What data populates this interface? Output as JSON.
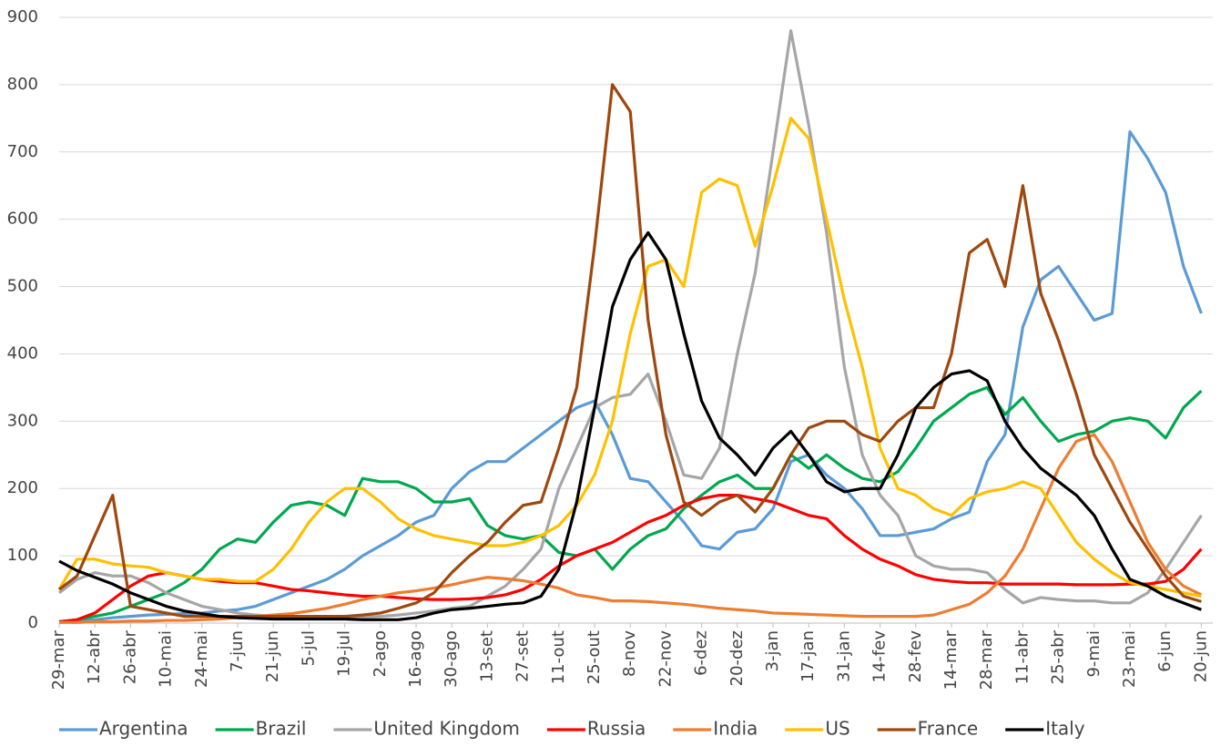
{
  "chart_data": {
    "type": "line",
    "categories": [
      "29-mar",
      null,
      "12-abr",
      null,
      "26-abr",
      null,
      "10-mai",
      null,
      "24-mai",
      null,
      "7-jun",
      null,
      "21-jun",
      null,
      "5-jul",
      null,
      "19-jul",
      null,
      "2-ago",
      null,
      "16-ago",
      null,
      "30-ago",
      null,
      "13-set",
      null,
      "27-set",
      null,
      "11-out",
      null,
      "25-out",
      null,
      "8-nov",
      null,
      "22-nov",
      null,
      "6-dez",
      null,
      "20-dez",
      null,
      "3-jan",
      null,
      "17-jan",
      null,
      "31-jan",
      null,
      "14-fev",
      null,
      "28-fev",
      null,
      "14-mar",
      null,
      "28-mar",
      null,
      "11-abr",
      null,
      "25-abr",
      null,
      "9-mai",
      null,
      "23-mai",
      null,
      "6-jun",
      null,
      "20-jun"
    ],
    "series": [
      {
        "name": "Argentina",
        "color": "#5b9bd5",
        "values": [
          2,
          3,
          5,
          8,
          10,
          12,
          13,
          14,
          15,
          18,
          20,
          25,
          35,
          45,
          55,
          65,
          80,
          100,
          115,
          130,
          150,
          160,
          200,
          225,
          240,
          240,
          260,
          280,
          300,
          320,
          330,
          280,
          215,
          210,
          180,
          150,
          115,
          110,
          135,
          140,
          170,
          240,
          250,
          220,
          200,
          170,
          130,
          130,
          135,
          140,
          155,
          165,
          240,
          280,
          440,
          510,
          530,
          490,
          450,
          460,
          730,
          690,
          640,
          530,
          460
        ]
      },
      {
        "name": "Brazil",
        "color": "#00a84f",
        "values": [
          2,
          5,
          10,
          15,
          25,
          35,
          45,
          60,
          80,
          110,
          125,
          120,
          150,
          175,
          180,
          175,
          160,
          215,
          210,
          210,
          200,
          180,
          180,
          185,
          145,
          130,
          125,
          130,
          105,
          100,
          110,
          80,
          110,
          130,
          140,
          170,
          190,
          210,
          220,
          200,
          200,
          250,
          230,
          250,
          230,
          215,
          210,
          225,
          260,
          300,
          320,
          340,
          350,
          310,
          335,
          300,
          270,
          280,
          285,
          300,
          305,
          300,
          275,
          320,
          345
        ]
      },
      {
        "name": "United Kingdom",
        "color": "#a6a6a6",
        "values": [
          45,
          65,
          75,
          70,
          70,
          60,
          45,
          35,
          25,
          20,
          15,
          12,
          10,
          8,
          8,
          8,
          8,
          9,
          10,
          12,
          15,
          18,
          22,
          25,
          40,
          55,
          80,
          110,
          200,
          260,
          320,
          335,
          340,
          370,
          300,
          220,
          215,
          260,
          400,
          520,
          700,
          880,
          740,
          580,
          380,
          250,
          190,
          160,
          100,
          85,
          80,
          80,
          75,
          50,
          30,
          38,
          35,
          33,
          33,
          30,
          30,
          45,
          80,
          120,
          160
        ]
      },
      {
        "name": "Russia",
        "color": "#ff0000",
        "values": [
          2,
          5,
          15,
          35,
          55,
          70,
          75,
          70,
          65,
          62,
          60,
          60,
          55,
          50,
          48,
          45,
          42,
          40,
          40,
          38,
          36,
          35,
          35,
          36,
          38,
          42,
          50,
          65,
          85,
          100,
          110,
          120,
          135,
          150,
          160,
          175,
          185,
          190,
          190,
          185,
          180,
          170,
          160,
          155,
          130,
          110,
          95,
          85,
          72,
          65,
          62,
          60,
          60,
          58,
          58,
          58,
          58,
          57,
          57,
          57,
          58,
          58,
          62,
          80,
          110
        ]
      },
      {
        "name": "India",
        "color": "#ed7d31",
        "values": [
          1,
          1,
          2,
          2,
          3,
          3,
          4,
          4,
          5,
          6,
          8,
          10,
          12,
          14,
          18,
          22,
          28,
          35,
          40,
          45,
          48,
          52,
          57,
          63,
          68,
          66,
          63,
          58,
          52,
          42,
          38,
          33,
          33,
          32,
          30,
          28,
          25,
          22,
          20,
          18,
          15,
          14,
          13,
          12,
          11,
          10,
          10,
          10,
          10,
          12,
          20,
          28,
          45,
          70,
          110,
          170,
          230,
          270,
          280,
          240,
          180,
          120,
          80,
          55,
          42
        ]
      },
      {
        "name": "US",
        "color": "#ffc000",
        "values": [
          50,
          95,
          95,
          88,
          85,
          83,
          75,
          70,
          65,
          65,
          62,
          62,
          80,
          110,
          150,
          180,
          200,
          200,
          180,
          155,
          140,
          130,
          125,
          120,
          115,
          115,
          120,
          130,
          145,
          175,
          220,
          300,
          430,
          530,
          540,
          500,
          640,
          660,
          650,
          560,
          650,
          750,
          720,
          600,
          480,
          380,
          260,
          200,
          190,
          170,
          160,
          185,
          195,
          200,
          210,
          200,
          160,
          120,
          95,
          75,
          60,
          55,
          50,
          45,
          40
        ]
      },
      {
        "name": "France",
        "color": "#9e480e",
        "values": [
          50,
          70,
          130,
          190,
          25,
          20,
          15,
          10,
          10,
          10,
          10,
          10,
          10,
          10,
          10,
          10,
          10,
          12,
          15,
          22,
          30,
          45,
          75,
          100,
          120,
          150,
          175,
          180,
          260,
          350,
          560,
          800,
          760,
          450,
          280,
          180,
          160,
          180,
          190,
          165,
          200,
          250,
          290,
          300,
          300,
          280,
          270,
          300,
          320,
          320,
          400,
          550,
          570,
          500,
          650,
          490,
          420,
          340,
          250,
          200,
          150,
          110,
          70,
          40,
          32
        ]
      },
      {
        "name": "Italy",
        "color": "#000000",
        "values": [
          92,
          78,
          68,
          58,
          45,
          35,
          25,
          18,
          14,
          10,
          8,
          7,
          6,
          6,
          6,
          6,
          6,
          5,
          5,
          5,
          8,
          15,
          20,
          22,
          25,
          28,
          30,
          40,
          80,
          180,
          320,
          470,
          540,
          580,
          540,
          430,
          330,
          275,
          250,
          220,
          260,
          285,
          250,
          210,
          195,
          200,
          200,
          250,
          320,
          350,
          370,
          375,
          360,
          300,
          260,
          230,
          210,
          190,
          160,
          110,
          65,
          55,
          40,
          30,
          20
        ]
      }
    ],
    "ylim": [
      0,
      900
    ],
    "yticks": [
      0,
      100,
      200,
      300,
      400,
      500,
      600,
      700,
      800,
      900
    ],
    "grid": true,
    "legend": "bottom"
  }
}
